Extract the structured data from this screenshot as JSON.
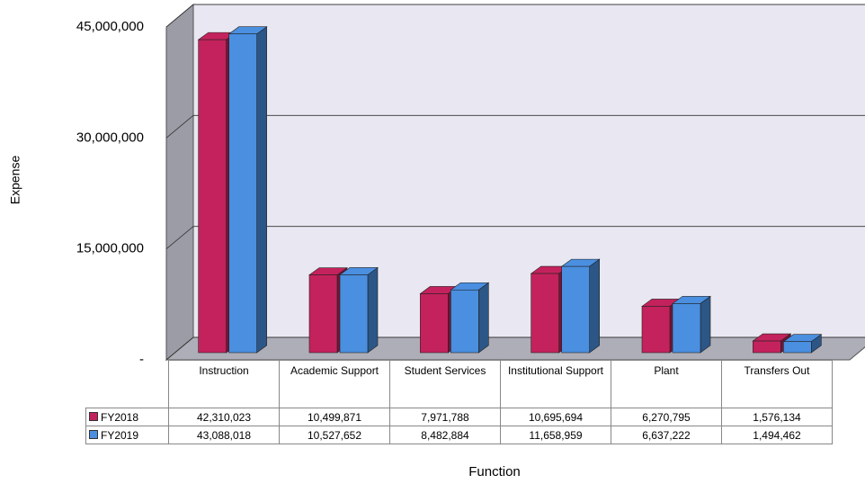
{
  "chart_data": {
    "type": "bar3d",
    "y_label": "Expense",
    "x_label": "Function",
    "categories": [
      "Instruction",
      "Academic Support",
      "Student Services",
      "Institutional Support",
      "Plant",
      "Transfers Out"
    ],
    "series": [
      {
        "name": "FY2018",
        "color": "#c4225c",
        "values": [
          42310023,
          10499871,
          7971788,
          10695694,
          6270795,
          1576134
        ],
        "value_labels": [
          "42,310,023",
          "10,499,871",
          "7,971,788",
          "10,695,694",
          "6,270,795",
          "1,576,134"
        ]
      },
      {
        "name": "FY2019",
        "color": "#4a8fe0",
        "values": [
          43088018,
          10527652,
          8482884,
          11658959,
          6637222,
          1494462
        ],
        "value_labels": [
          "43,088,018",
          "10,527,652",
          "8,482,884",
          "11,658,959",
          "6,637,222",
          "1,494,462"
        ]
      }
    ],
    "ylim": [
      0,
      45000000
    ],
    "yticks": [
      {
        "value": 0,
        "label": "-"
      },
      {
        "value": 15000000,
        "label": "15,000,000"
      },
      {
        "value": 30000000,
        "label": "30,000,000"
      },
      {
        "value": 45000000,
        "label": "45,000,000"
      }
    ],
    "grid": true
  }
}
